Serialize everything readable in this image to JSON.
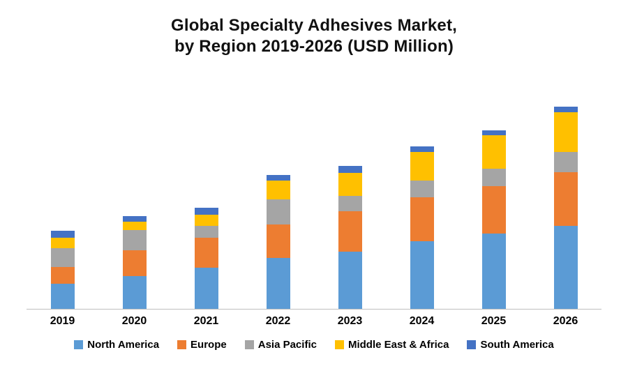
{
  "title_line1": "Global Specialty Adhesives Market,",
  "title_line2": "by Region 2019-2026 (USD Million)",
  "chart_data": {
    "type": "bar",
    "stacked": true,
    "title": "Global Specialty Adhesives Market, by Region 2019-2026 (USD Million)",
    "categories": [
      "2019",
      "2020",
      "2021",
      "2022",
      "2023",
      "2024",
      "2025",
      "2026"
    ],
    "series": [
      {
        "name": "North America",
        "color": "#5B9BD5",
        "values": [
          370,
          490,
          610,
          750,
          850,
          1000,
          1120,
          1230
        ]
      },
      {
        "name": "Europe",
        "color": "#ED7D31",
        "values": [
          250,
          380,
          440,
          500,
          600,
          650,
          700,
          800
        ]
      },
      {
        "name": "Asia Pacific",
        "color": "#A5A5A5",
        "values": [
          280,
          300,
          180,
          370,
          230,
          250,
          260,
          300
        ]
      },
      {
        "name": "Middle East & Africa",
        "color": "#FFC000",
        "values": [
          150,
          120,
          170,
          280,
          340,
          420,
          500,
          590
        ]
      },
      {
        "name": "South America",
        "color": "#4472C4",
        "values": [
          100,
          80,
          100,
          80,
          100,
          80,
          70,
          80
        ]
      }
    ],
    "xlabel": "",
    "ylabel": "",
    "ylim": [
      0,
      3100
    ],
    "grid": false,
    "legend_position": "bottom",
    "axis_labels_visible": false
  }
}
